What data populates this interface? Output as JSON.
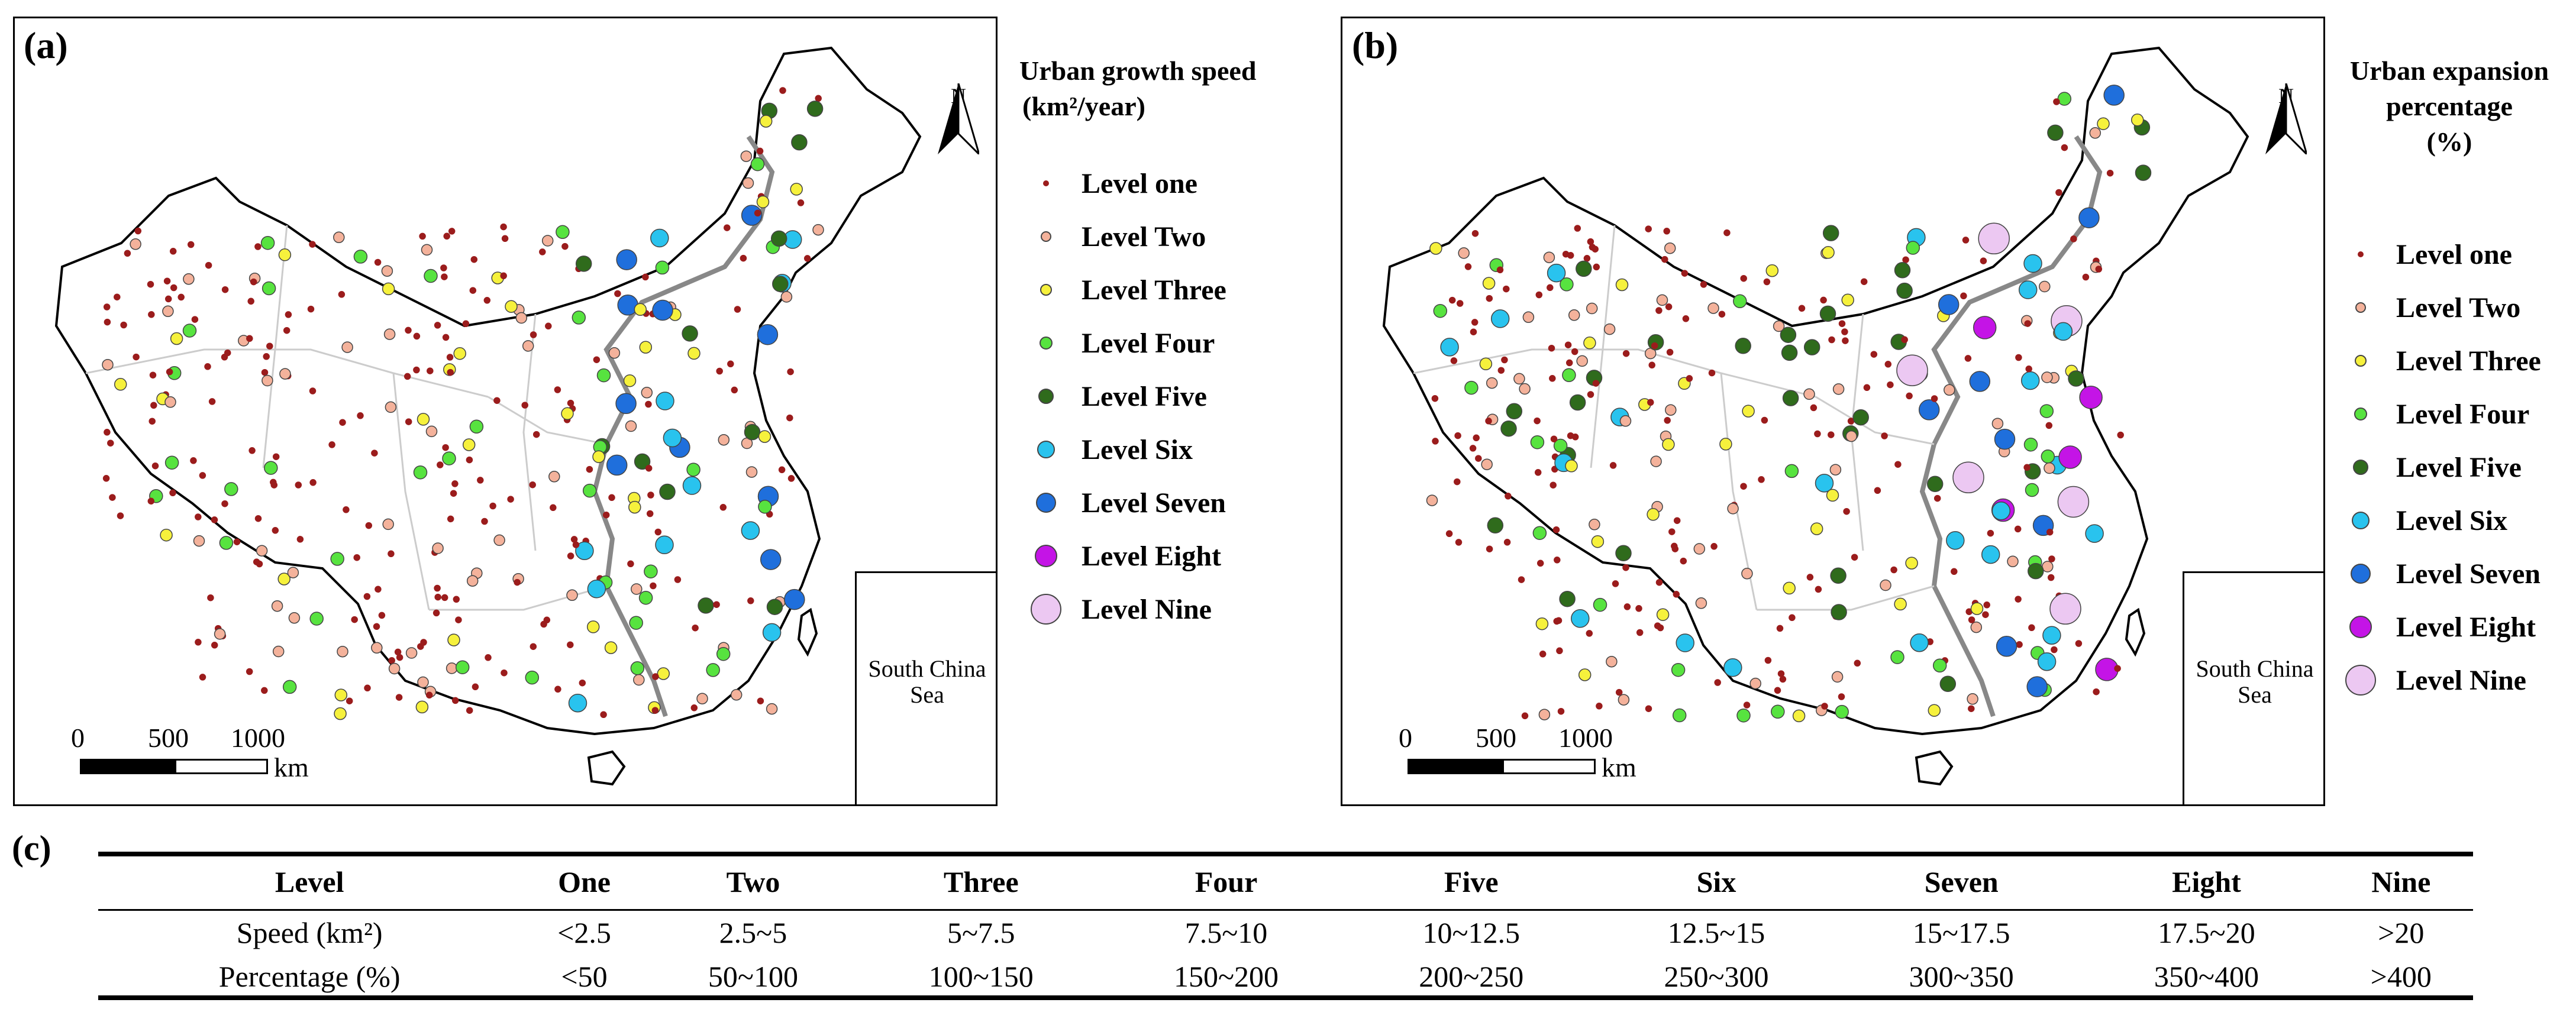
{
  "panels": {
    "a": {
      "label": "(a)",
      "legend_title_line1": "Urban growth speed",
      "legend_title_line2": "(km²/year)",
      "north": "N",
      "inset_label_line1": "South China",
      "inset_label_line2": "Sea",
      "scale_ticks": [
        "0",
        "500",
        "1000"
      ],
      "scale_unit": "km"
    },
    "b": {
      "label": "(b)",
      "legend_title_line1": "Urban expansion",
      "legend_title_line2": "percentage",
      "legend_title_line3": "(%)",
      "north": "N",
      "inset_label_line1": "South China",
      "inset_label_line2": "Sea",
      "scale_ticks": [
        "0",
        "500",
        "1000"
      ],
      "scale_unit": "km"
    },
    "c": {
      "label": "(c)"
    }
  },
  "legend_levels": [
    {
      "name": "Level one",
      "color": "#9b1c1c"
    },
    {
      "name": "Level Two",
      "color": "#f4b29b"
    },
    {
      "name": "Level Three",
      "color": "#f6f13c"
    },
    {
      "name": "Level Four",
      "color": "#57e33f"
    },
    {
      "name": "Level Five",
      "color": "#2f6b1c"
    },
    {
      "name": "Level Six",
      "color": "#29c3ee"
    },
    {
      "name": "Level Seven",
      "color": "#1f6fdc"
    },
    {
      "name": "Level Eight",
      "color": "#c414e6"
    },
    {
      "name": "Level Nine",
      "color": "#ecc8f2"
    }
  ],
  "table": {
    "header": [
      "Level",
      "One",
      "Two",
      "Three",
      "Four",
      "Five",
      "Six",
      "Seven",
      "Eight",
      "Nine"
    ],
    "rows": [
      [
        "Speed (km²)",
        "<2.5",
        "2.5~5",
        "5~7.5",
        "7.5~10",
        "10~12.5",
        "12.5~15",
        "15~17.5",
        "17.5~20",
        ">20"
      ],
      [
        "Percentage (%)",
        "<50",
        "50~100",
        "100~150",
        "150~200",
        "200~250",
        "250~300",
        "300~350",
        "350~400",
        ">400"
      ]
    ]
  }
}
